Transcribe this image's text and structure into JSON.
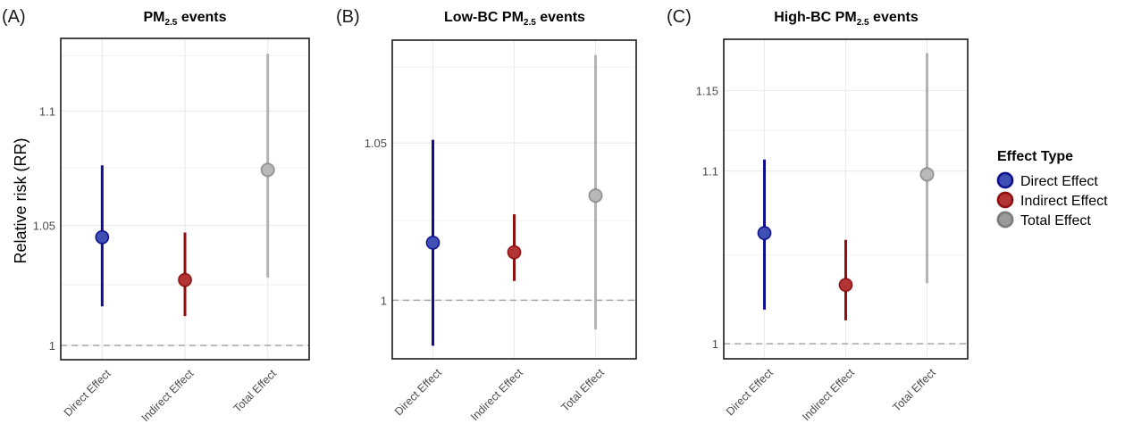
{
  "chart_data": {
    "type": "pointrange",
    "ylabel": "Relative risk (RR)",
    "y_scale": "log",
    "categories": [
      "Direct Effect",
      "Indirect Effect",
      "Total Effect"
    ],
    "legend": {
      "title": "Effect Type",
      "placement": "right",
      "entries": [
        {
          "label": "Direct Effect",
          "line_color": "#10108f",
          "fill_color": "#3f4fb3"
        },
        {
          "label": "Indirect Effect",
          "line_color": "#8f1010",
          "fill_color": "#b23434"
        },
        {
          "label": "Total Effect",
          "line_color": "#b3b3b3",
          "fill_color": "#b8b8b8"
        }
      ]
    },
    "reference_line": {
      "y": 1,
      "style": "dashed"
    },
    "grid": true,
    "panels": [
      {
        "letter": "(A)",
        "title_main": "PM",
        "title_sub": "2.5",
        "title_rest": " events",
        "ylim": [
          0.9942,
          1.133
        ],
        "y_ticks": [
          1,
          1.05,
          1.1
        ],
        "y_tick_labels": [
          "1",
          "1.05",
          "1.1"
        ],
        "minor_grid": [
          1.025,
          1.075,
          1.125
        ],
        "points": [
          {
            "category": "Direct Effect",
            "estimate": 1.045,
            "lower": 1.016,
            "upper": 1.076
          },
          {
            "category": "Indirect Effect",
            "estimate": 1.027,
            "lower": 1.012,
            "upper": 1.047
          },
          {
            "category": "Total Effect",
            "estimate": 1.074,
            "lower": 1.028,
            "upper": 1.126
          }
        ]
      },
      {
        "letter": "(B)",
        "title_main": "Low-BC PM",
        "title_sub": "2.5",
        "title_rest": " events",
        "ylim": [
          0.982,
          1.084
        ],
        "y_ticks": [
          1,
          1.05
        ],
        "y_tick_labels": [
          "1",
          "1.05"
        ],
        "minor_grid": [
          1.025,
          1.075
        ],
        "points": [
          {
            "category": "Direct Effect",
            "estimate": 1.018,
            "lower": 0.986,
            "upper": 1.051
          },
          {
            "category": "Indirect Effect",
            "estimate": 1.015,
            "lower": 1.006,
            "upper": 1.027
          },
          {
            "category": "Total Effect",
            "estimate": 1.033,
            "lower": 0.991,
            "upper": 1.079
          }
        ]
      },
      {
        "letter": "(C)",
        "title_main": "High-BC PM",
        "title_sub": "2.5",
        "title_rest": " events",
        "ylim": [
          0.9917,
          1.183
        ],
        "y_ticks": [
          1,
          1.1,
          1.15
        ],
        "y_tick_labels": [
          "1",
          "1.1",
          "1.15"
        ],
        "minor_grid": [
          1.05,
          1.125
        ],
        "points": [
          {
            "category": "Direct Effect",
            "estimate": 1.063,
            "lower": 1.019,
            "upper": 1.107
          },
          {
            "category": "Indirect Effect",
            "estimate": 1.033,
            "lower": 1.013,
            "upper": 1.059
          },
          {
            "category": "Total Effect",
            "estimate": 1.098,
            "lower": 1.034,
            "upper": 1.174
          }
        ]
      }
    ]
  }
}
